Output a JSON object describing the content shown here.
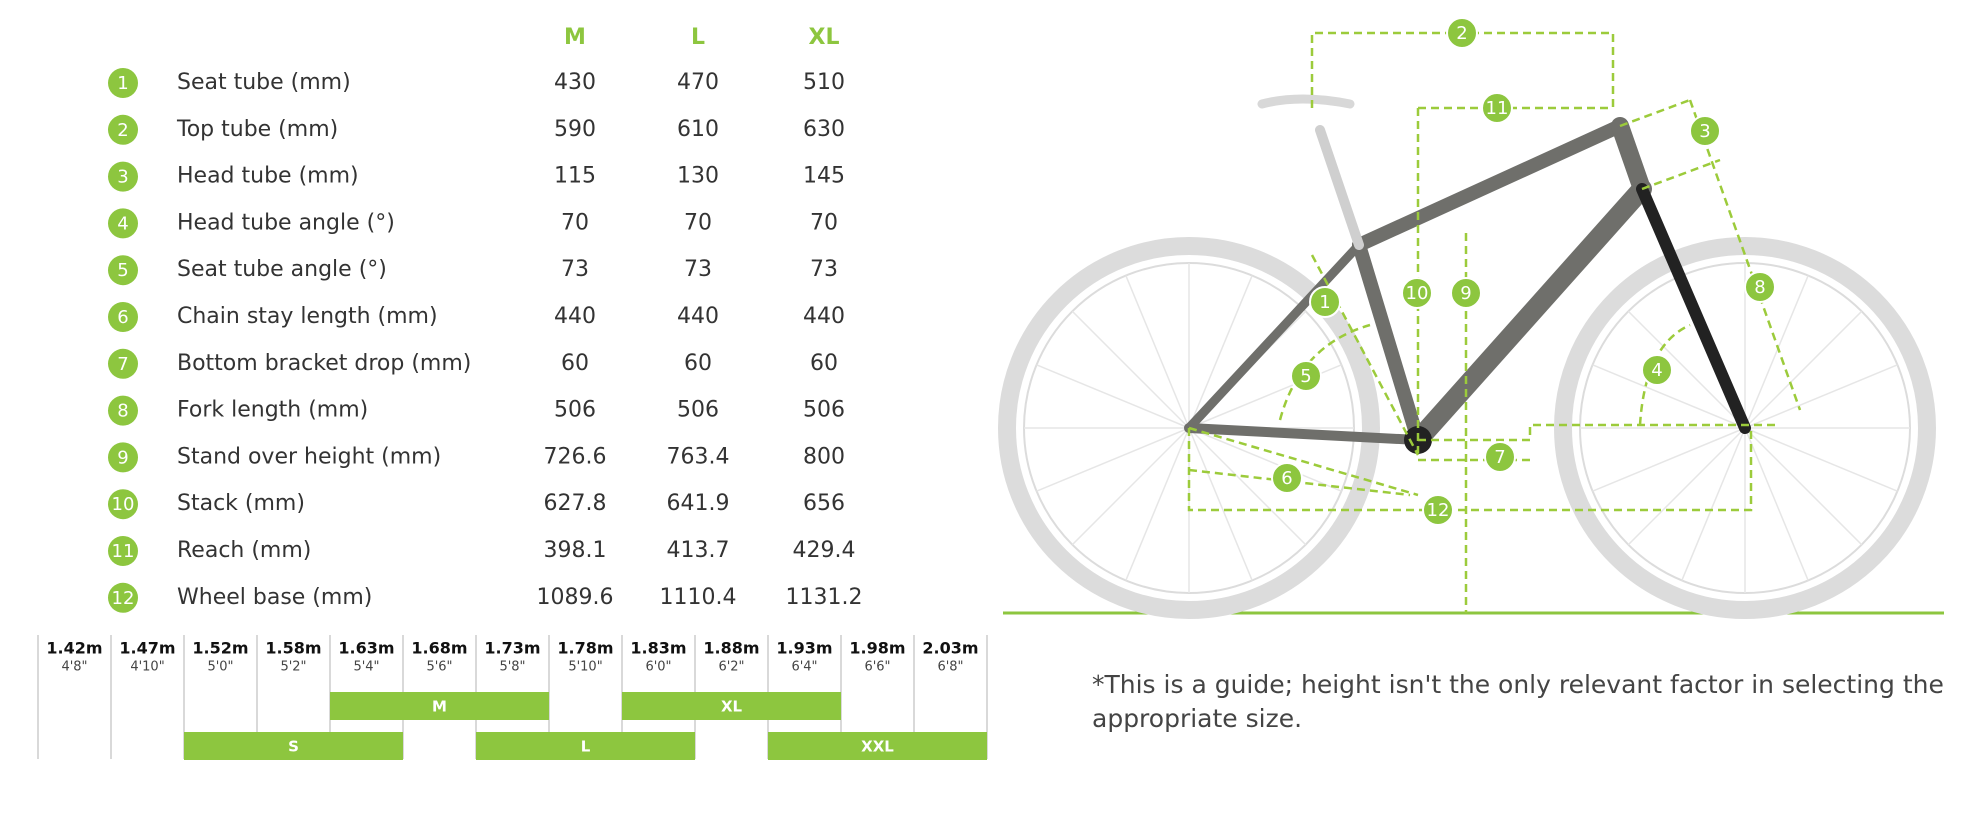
{
  "table": {
    "columns": [
      "M",
      "L",
      "XL"
    ],
    "rows": [
      {
        "number": "1",
        "label": "Seat tube (mm)",
        "values": [
          "430",
          "470",
          "510"
        ]
      },
      {
        "number": "2",
        "label": "Top tube (mm)",
        "values": [
          "590",
          "610",
          "630"
        ]
      },
      {
        "number": "3",
        "label": "Head tube (mm)",
        "values": [
          "115",
          "130",
          "145"
        ]
      },
      {
        "number": "4",
        "label": "Head tube angle (°)",
        "values": [
          "70",
          "70",
          "70"
        ]
      },
      {
        "number": "5",
        "label": "Seat tube angle (°)",
        "values": [
          "73",
          "73",
          "73"
        ]
      },
      {
        "number": "6",
        "label": "Chain stay length (mm)",
        "values": [
          "440",
          "440",
          "440"
        ]
      },
      {
        "number": "7",
        "label": "Bottom bracket drop (mm)",
        "values": [
          "60",
          "60",
          "60"
        ]
      },
      {
        "number": "8",
        "label": "Fork length (mm)",
        "values": [
          "506",
          "506",
          "506"
        ]
      },
      {
        "number": "9",
        "label": "Stand over height (mm)",
        "values": [
          "726.6",
          "763.4",
          "800"
        ]
      },
      {
        "number": "10",
        "label": "Stack (mm)",
        "values": [
          "627.8",
          "641.9",
          "656"
        ]
      },
      {
        "number": "11",
        "label": "Reach (mm)",
        "values": [
          "398.1",
          "413.7",
          "429.4"
        ]
      },
      {
        "number": "12",
        "label": "Wheel base (mm)",
        "values": [
          "1089.6",
          "1110.4",
          "1131.2"
        ]
      }
    ]
  },
  "heights": [
    {
      "metric": "1.42m",
      "imperial": "4'8\""
    },
    {
      "metric": "1.47m",
      "imperial": "4'10\""
    },
    {
      "metric": "1.52m",
      "imperial": "5'0\""
    },
    {
      "metric": "1.58m",
      "imperial": "5'2\""
    },
    {
      "metric": "1.63m",
      "imperial": "5'4\""
    },
    {
      "metric": "1.68m",
      "imperial": "5'6\""
    },
    {
      "metric": "1.73m",
      "imperial": "5'8\""
    },
    {
      "metric": "1.78m",
      "imperial": "5'10\""
    },
    {
      "metric": "1.83m",
      "imperial": "6'0\""
    },
    {
      "metric": "1.88m",
      "imperial": "6'2\""
    },
    {
      "metric": "1.93m",
      "imperial": "6'4\""
    },
    {
      "metric": "1.98m",
      "imperial": "6'6\""
    },
    {
      "metric": "2.03m",
      "imperial": "6'8\""
    }
  ],
  "sizes": [
    "S",
    "M",
    "L",
    "XL",
    "XXL"
  ],
  "note": "*This is a guide; height isn't the only relevant factor in selecting the appropriate size."
}
